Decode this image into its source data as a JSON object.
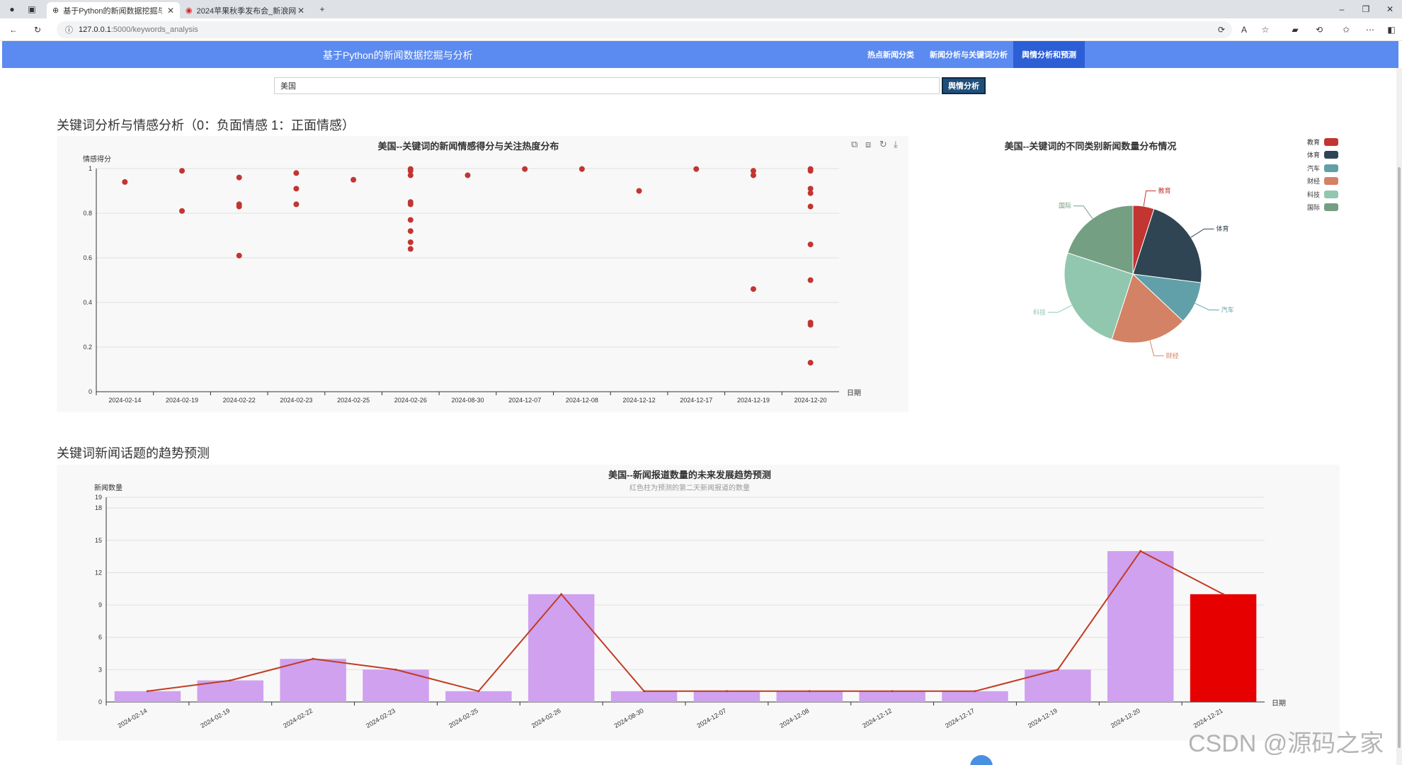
{
  "browser": {
    "tabs": [
      {
        "label": "基于Python的新闻数据挖掘与分析",
        "active": true
      },
      {
        "label": "2024苹果秋季发布会_新浪网",
        "active": false
      }
    ],
    "new_tab_label": "+",
    "url_host": "127.0.0.1",
    "url_path": ":5000/keywords_analysis",
    "window_controls": [
      "–",
      "❐",
      "✕"
    ]
  },
  "app": {
    "title": "基于Python的新闻数据挖掘与分析",
    "nav": [
      {
        "label": "热点新闻分类",
        "active": false
      },
      {
        "label": "新闻分析与关键词分析",
        "active": false
      },
      {
        "label": "舆情分析和预测",
        "active": true
      }
    ]
  },
  "search": {
    "value": "美国",
    "button_label": "舆情分析"
  },
  "section1_title": "关键词分析与情感分析（0：负面情感 1：正面情感）",
  "section2_title": "关键词新闻话题的趋势预测",
  "watermark": "CSDN @源码之家",
  "colors": {
    "nav_bg": "#5b8af0",
    "nav_active": "#2c5fd6",
    "scatter": "#c23531",
    "bar": "#cfa1ef",
    "bar_pred": "#e60000",
    "line": "#c23b22"
  },
  "chart_data": [
    {
      "type": "scatter",
      "title": "美国--关键词的新闻情感得分与关注热度分布",
      "ylabel": "情感得分",
      "xlabel": "日期",
      "ylim": [
        0,
        1
      ],
      "yticks": [
        "0",
        "0.2",
        "0.4",
        "0.6",
        "0.8",
        "1"
      ],
      "categories": [
        "2024-02-14",
        "2024-02-19",
        "2024-02-22",
        "2024-02-23",
        "2024-02-25",
        "2024-02-26",
        "2024-08-30",
        "2024-12-07",
        "2024-12-08",
        "2024-12-12",
        "2024-12-17",
        "2024-12-19",
        "2024-12-20"
      ],
      "points": [
        [
          0,
          0.94
        ],
        [
          1,
          0.99
        ],
        [
          1,
          0.81
        ],
        [
          2,
          0.96
        ],
        [
          2,
          0.84
        ],
        [
          2,
          0.83
        ],
        [
          2,
          0.61
        ],
        [
          3,
          0.98
        ],
        [
          3,
          0.91
        ],
        [
          3,
          0.84
        ],
        [
          4,
          0.95
        ],
        [
          5,
          0.998
        ],
        [
          5,
          0.99
        ],
        [
          5,
          0.97
        ],
        [
          5,
          0.85
        ],
        [
          5,
          0.84
        ],
        [
          5,
          0.77
        ],
        [
          5,
          0.72
        ],
        [
          5,
          0.67
        ],
        [
          5,
          0.64
        ],
        [
          6,
          0.97
        ],
        [
          7,
          0.998
        ],
        [
          8,
          0.998
        ],
        [
          9,
          0.9
        ],
        [
          10,
          0.998
        ],
        [
          11,
          0.99
        ],
        [
          11,
          0.97
        ],
        [
          11,
          0.46
        ],
        [
          12,
          0.998
        ],
        [
          12,
          0.99
        ],
        [
          12,
          0.91
        ],
        [
          12,
          0.89
        ],
        [
          12,
          0.83
        ],
        [
          12,
          0.66
        ],
        [
          12,
          0.5
        ],
        [
          12,
          0.31
        ],
        [
          12,
          0.3
        ],
        [
          12,
          0.13
        ]
      ],
      "grid": true
    },
    {
      "type": "pie",
      "title": "美国--关键词的不同类别新闻数量分布情况",
      "legend_position": "top-right",
      "labels": [
        "教育",
        "体育",
        "汽车",
        "财经",
        "科技",
        "国际"
      ],
      "values": [
        5,
        22,
        10,
        18,
        25,
        20
      ],
      "colors": [
        "#c23531",
        "#2f4554",
        "#61a0a8",
        "#d48265",
        "#91c7ae",
        "#749f83"
      ]
    },
    {
      "type": "bar",
      "title": "美国--新闻报道数量的未来发展趋势预测",
      "subtitle": "红色柱为预测的第二天新闻报道的数量",
      "ylabel": "新闻数量",
      "xlabel": "日期",
      "ylim": [
        0,
        19
      ],
      "yticks": [
        "0",
        "3",
        "6",
        "9",
        "12",
        "15",
        "18",
        "19"
      ],
      "categories": [
        "2024-02-14",
        "2024-02-19",
        "2024-02-22",
        "2024-02-23",
        "2024-02-25",
        "2024-02-26",
        "2024-08-30",
        "2024-12-07",
        "2024-12-08",
        "2024-12-12",
        "2024-12-17",
        "2024-12-19",
        "2024-12-20",
        "2024-12-21"
      ],
      "values": [
        1,
        2,
        4,
        3,
        1,
        10,
        1,
        1,
        1,
        1,
        1,
        3,
        14,
        10
      ],
      "line_values": [
        1,
        2,
        4,
        3,
        1,
        10,
        1,
        1,
        1,
        1,
        1,
        3,
        14,
        10
      ],
      "predicted_index": 13,
      "grid": true
    }
  ]
}
